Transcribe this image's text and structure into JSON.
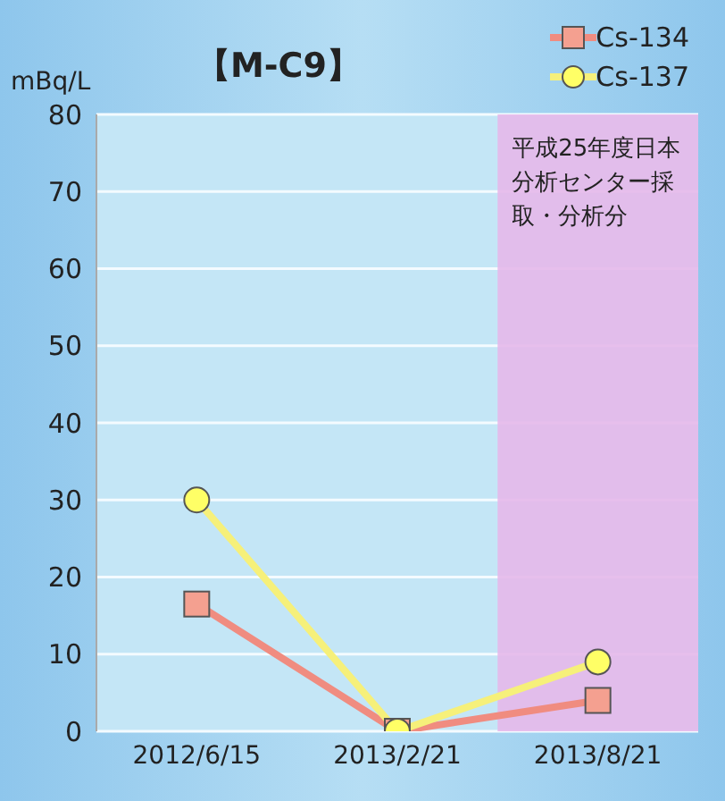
{
  "chart_data": {
    "type": "line",
    "title": "【M-C9】",
    "ylabel": "mBq/L",
    "categories": [
      "2012/6/15",
      "2013/2/21",
      "2013/8/21"
    ],
    "series": [
      {
        "name": "Cs-134",
        "color": "#f08c80",
        "marker": "square",
        "values": [
          16.5,
          0,
          4
        ]
      },
      {
        "name": "Cs-137",
        "color": "#f6f07a",
        "marker": "circle",
        "values": [
          30,
          0,
          9
        ]
      }
    ],
    "ylim": [
      0,
      80
    ],
    "yticks": [
      0,
      10,
      20,
      30,
      40,
      50,
      60,
      70,
      80
    ],
    "bands": [
      {
        "axis": "x",
        "from": "2013/8/21",
        "to": "2013/8/21",
        "label": "平成25年度日本分析センター採取・分析分",
        "color": "#e6b8ea"
      }
    ],
    "grid": "y",
    "legend": "top right"
  }
}
